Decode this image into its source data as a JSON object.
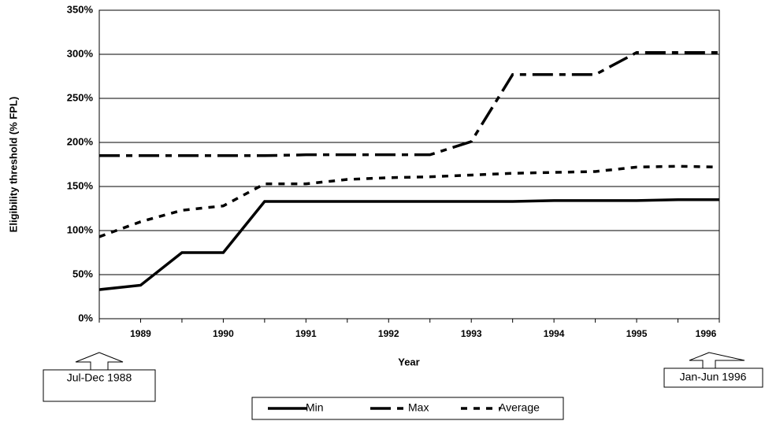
{
  "chart_data": {
    "type": "line",
    "y_label": "Eligibility threshold (% FPL)",
    "x_label": "Year",
    "categories": [
      null,
      "1989",
      null,
      "1990",
      null,
      "1991",
      null,
      "1992",
      null,
      "1993",
      null,
      "1994",
      null,
      "1995",
      null,
      "1996"
    ],
    "series": [
      {
        "name": "Min",
        "color": "#000000",
        "dash": "solid",
        "values": [
          33,
          38,
          75,
          75,
          133,
          133,
          133,
          133,
          133,
          133,
          133,
          134,
          134,
          134,
          135,
          135
        ]
      },
      {
        "name": "Max",
        "color": "#000000",
        "dash": "dashdot",
        "values": [
          185,
          185,
          185,
          185,
          185,
          186,
          186,
          186,
          186,
          201,
          277,
          277,
          277,
          302,
          302,
          302
        ]
      },
      {
        "name": "Average",
        "color": "#000000",
        "dash": "dash",
        "values": [
          93,
          110,
          123,
          128,
          153,
          153,
          158,
          160,
          161,
          163,
          165,
          166,
          167,
          172,
          173,
          172
        ]
      }
    ],
    "ylim": [
      0,
      350
    ],
    "yticks": [
      {
        "value": 0,
        "label": "0%"
      },
      {
        "value": 50,
        "label": "50%"
      },
      {
        "value": 100,
        "label": "100%"
      },
      {
        "value": 150,
        "label": "150%"
      },
      {
        "value": 200,
        "label": "200%"
      },
      {
        "value": 250,
        "label": "250%"
      },
      {
        "value": 300,
        "label": "300%"
      },
      {
        "value": 350,
        "label": "350%"
      }
    ],
    "grid": true,
    "legend": "bottom",
    "annotations": [
      "Jul-Dec 1988",
      "Jan-Jun 1996"
    ]
  }
}
